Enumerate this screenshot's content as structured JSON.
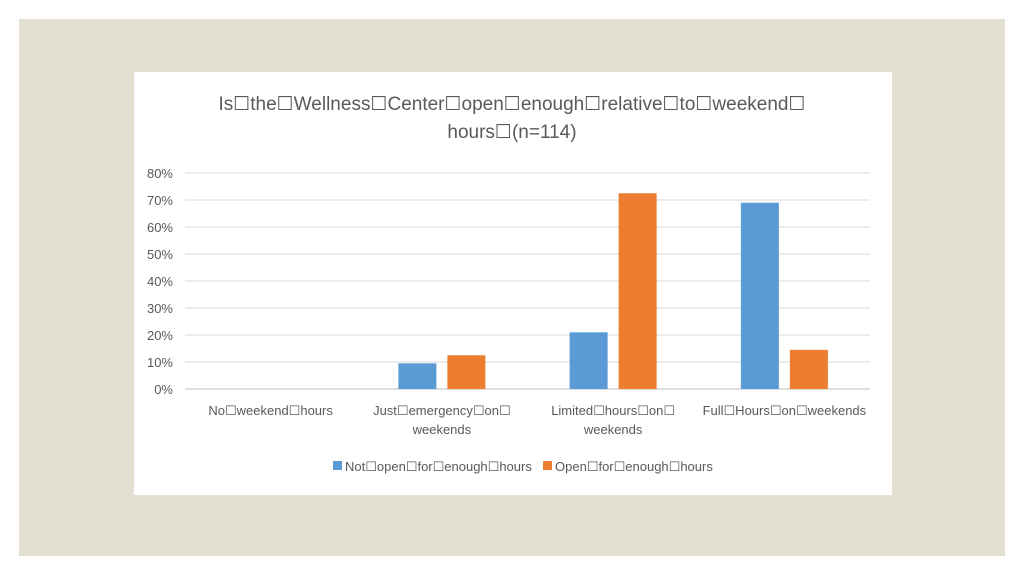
{
  "chart_data": {
    "type": "bar",
    "title_lines": [
      "Is☐the☐Wellness☐Center☐open☐enough☐relative☐to☐weekend☐",
      "hours☐(n=114)"
    ],
    "categories": [
      [
        "No☐weekend☐hours"
      ],
      [
        "Just☐emergency☐on☐",
        "weekends"
      ],
      [
        "Limited☐hours☐on☐",
        "weekends"
      ],
      [
        "Full☐Hours☐on☐weekends"
      ]
    ],
    "series": [
      {
        "name": "Not☐open☐for☐enough☐hours",
        "color": "#5b9bd5",
        "values": [
          0,
          9.5,
          21,
          69
        ]
      },
      {
        "name": "Open☐for☐enough☐hours",
        "color": "#ed7d31",
        "values": [
          0,
          12.5,
          72.5,
          14.5
        ]
      }
    ],
    "y_ticks": [
      "0%",
      "10%",
      "20%",
      "30%",
      "40%",
      "50%",
      "60%",
      "70%",
      "80%"
    ],
    "ylim": [
      0,
      80
    ],
    "grid": true,
    "legend_position": "bottom"
  }
}
